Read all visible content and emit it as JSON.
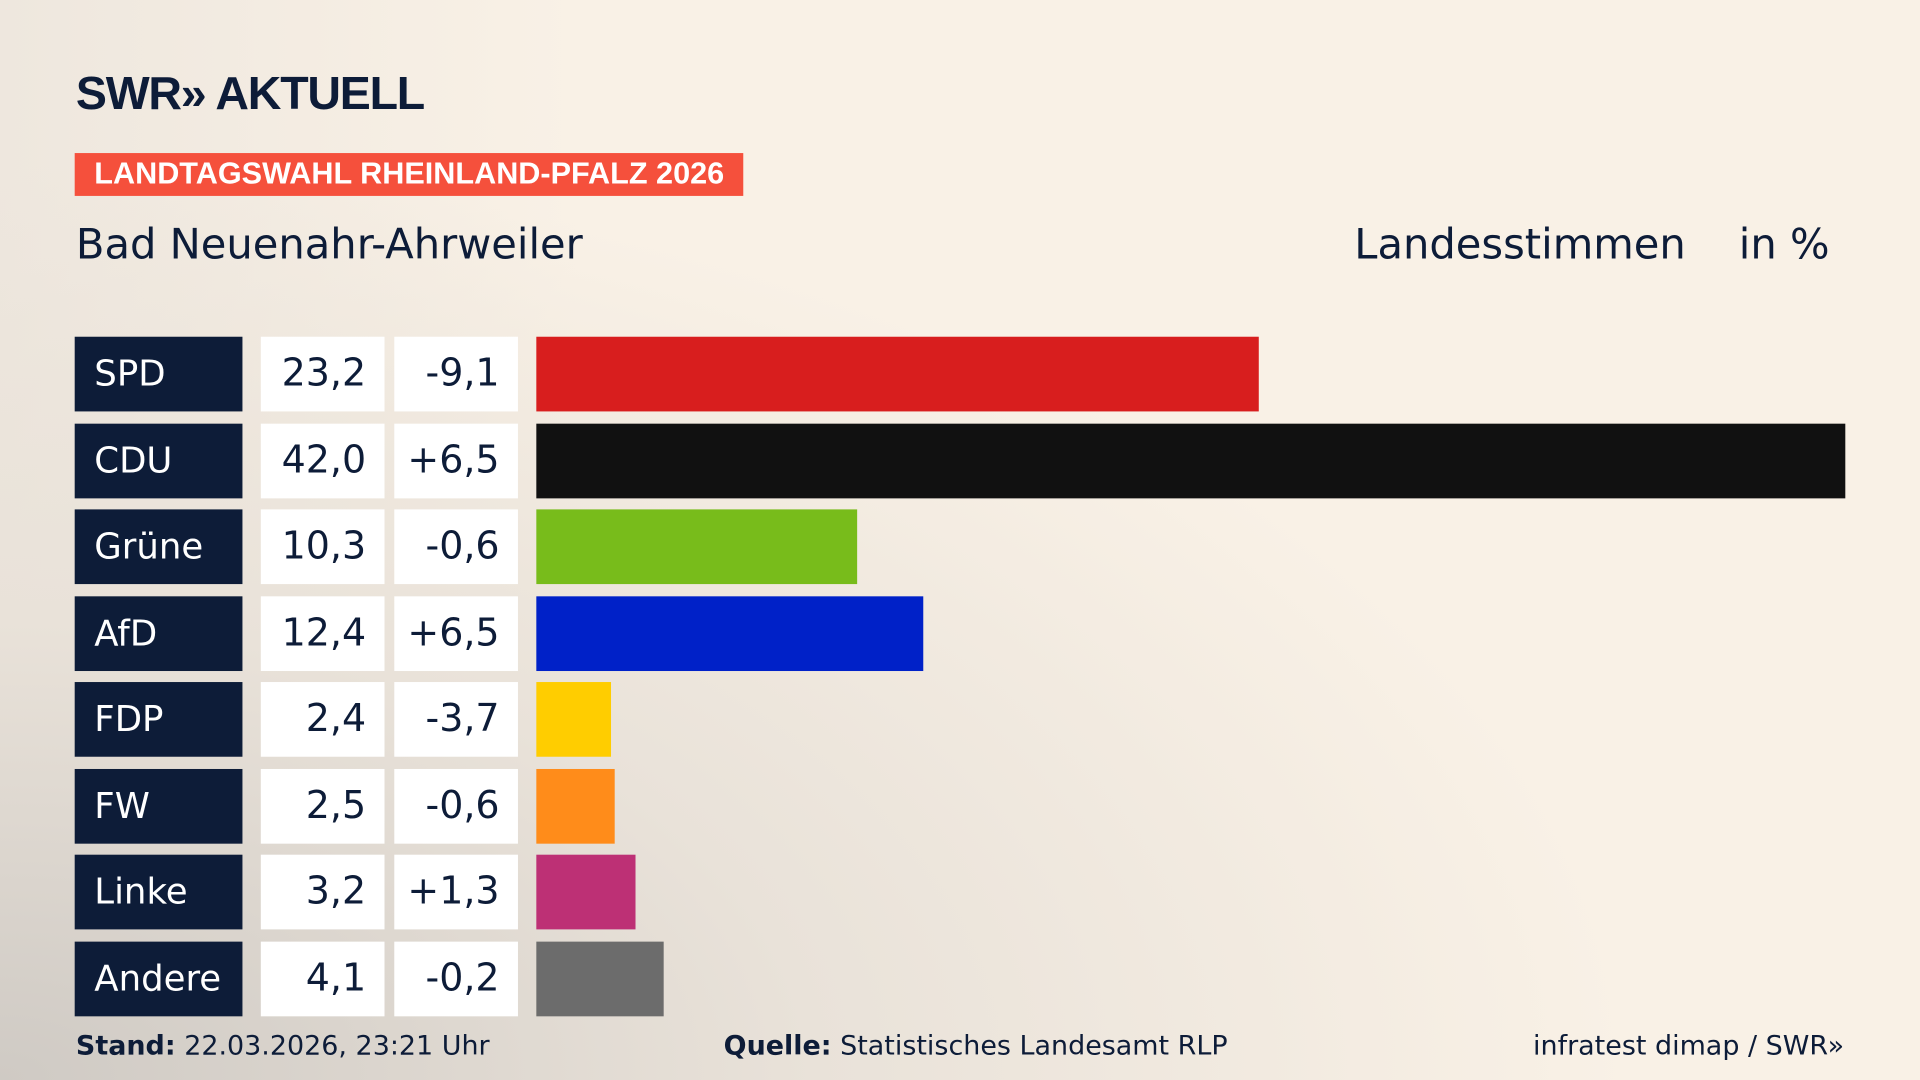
{
  "logo": {
    "text": "SWR» AKTUELL"
  },
  "banner": "LANDTAGSWAHL RHEINLAND-PFALZ 2026",
  "region": "Bad Neuenahr-Ahrweiler",
  "header": {
    "vote_type": "Landesstimmen",
    "unit": "in %"
  },
  "chart_data": {
    "type": "bar",
    "orientation": "horizontal",
    "categories": [
      "SPD",
      "CDU",
      "Grüne",
      "AfD",
      "FDP",
      "FW",
      "Linke",
      "Andere"
    ],
    "values": [
      23.2,
      42.0,
      10.3,
      12.4,
      2.4,
      2.5,
      3.2,
      4.1
    ],
    "value_labels": [
      "23,2",
      "42,0",
      "10,3",
      "12,4",
      "2,4",
      "2,5",
      "3,2",
      "4,1"
    ],
    "change_labels": [
      "-9,1",
      "+6,5",
      "-0,6",
      "+6,5",
      "-3,7",
      "-0,6",
      "+1,3",
      "-0,2"
    ],
    "colors": [
      "#d81e1e",
      "#111111",
      "#78bc1b",
      "#0021c8",
      "#ffcd00",
      "#ff8c1a",
      "#bd3075",
      "#6c6c6c"
    ],
    "grid": false
  },
  "footer": {
    "stand_label": "Stand:",
    "stand_value": "22.03.2026, 23:21 Uhr",
    "source_label": "Quelle:",
    "source_value": "Statistisches Landesamt RLP",
    "credit": "infratest dimap / SWR»"
  }
}
